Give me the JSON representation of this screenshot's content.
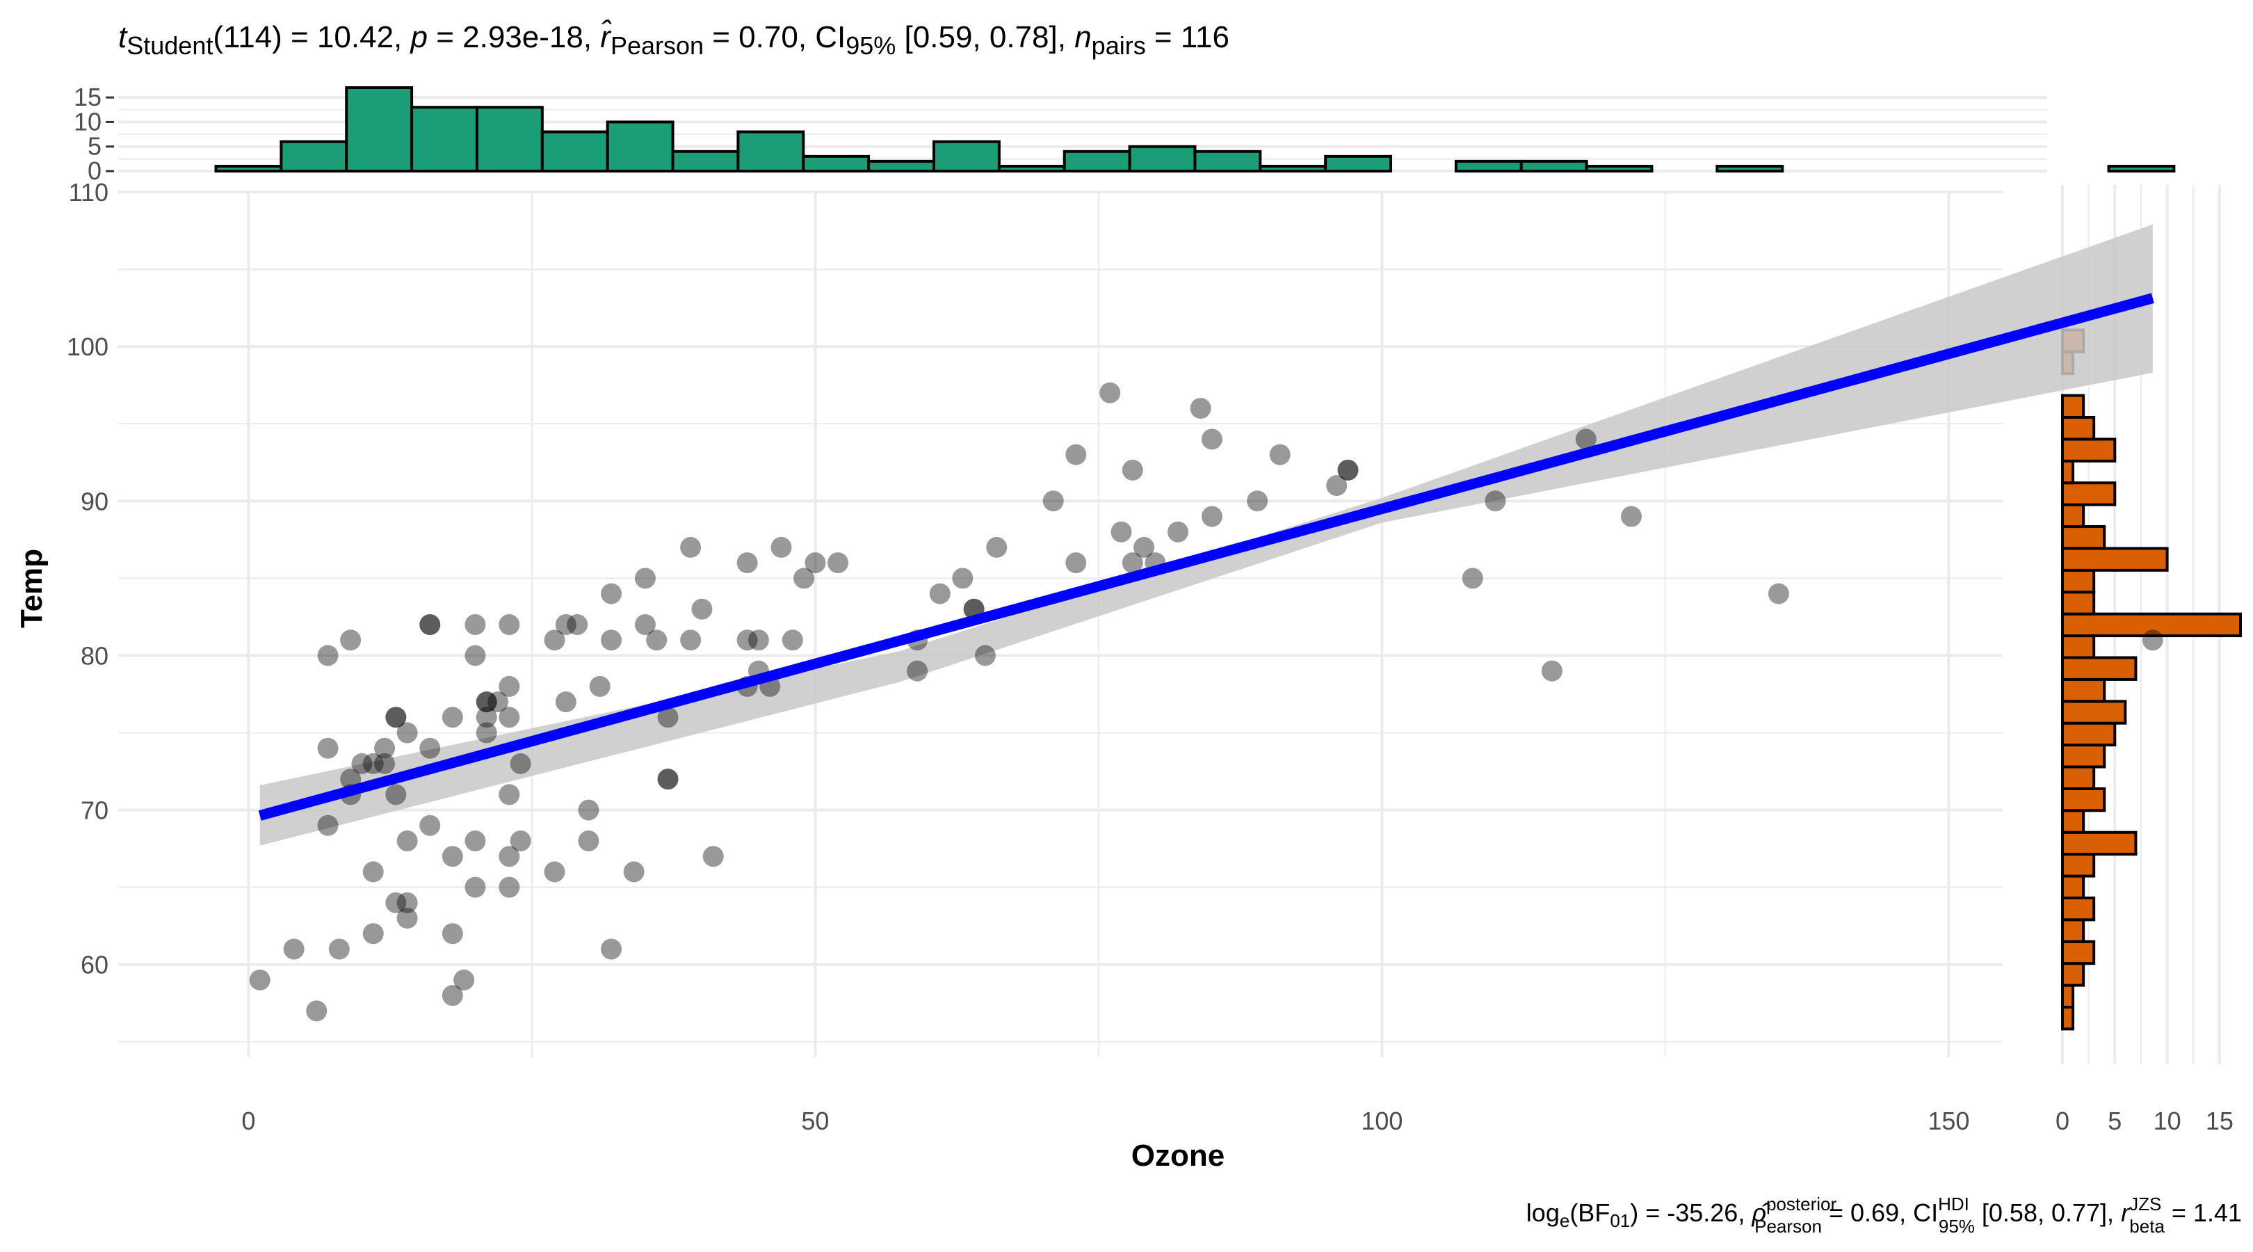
{
  "subtitle_top": {
    "t_sym": "t",
    "t_sub": "Student",
    "t_df": "(114) = 10.42, ",
    "p_sym": "p",
    "p_val": " = 2.93e-18, ",
    "r_sym": "r̂",
    "r_sub": "Pearson",
    "r_val": " = 0.70, CI",
    "ci_sub": "95%",
    "ci_val": " [0.59, 0.78], ",
    "n_sym": "n",
    "n_sub": "pairs",
    "n_val": " = 116"
  },
  "caption_bottom": {
    "log_txt": "log",
    "log_sub": "e",
    "bf_open": "(BF",
    "bf_sub": "01",
    "bf_close": ") = -35.26, ",
    "rho_sym": "ρ̂",
    "rho_sup": "posterior",
    "rho_sub": "Pearson",
    "rho_val": " = 0.69, CI",
    "ci_sup": "HDI",
    "ci_sub": "95%",
    "ci_val": " [0.58, 0.77], ",
    "rb_sym": "r",
    "rb_sup": "JZS",
    "rb_sub": "beta",
    "rb_val": " = 1.41"
  },
  "colors": {
    "top_hist_fill": "#1B9E77",
    "side_hist_fill": "#D95F02",
    "regression_line": "#0000FF",
    "ci_band": "#C8C8C8",
    "points": "#000000",
    "grid": "#EBEBEB"
  },
  "chart_data": {
    "type": "scatter",
    "xlabel": "Ozone",
    "ylabel": "Temp",
    "xlim": [
      -11.5,
      175.5
    ],
    "ylim": [
      54,
      110
    ],
    "x_ticks": [
      0,
      50,
      100,
      150
    ],
    "y_ticks": [
      60,
      70,
      80,
      90,
      100,
      110
    ],
    "grid": true,
    "points": [
      [
        1,
        59
      ],
      [
        4,
        61
      ],
      [
        6,
        57
      ],
      [
        7,
        74
      ],
      [
        7,
        69
      ],
      [
        7,
        80
      ],
      [
        8,
        61
      ],
      [
        9,
        81
      ],
      [
        9,
        72
      ],
      [
        9,
        71
      ],
      [
        10,
        73
      ],
      [
        11,
        73
      ],
      [
        11,
        66
      ],
      [
        11,
        62
      ],
      [
        12,
        73
      ],
      [
        12,
        74
      ],
      [
        13,
        76
      ],
      [
        13,
        64
      ],
      [
        13,
        71
      ],
      [
        13,
        76
      ],
      [
        14,
        63
      ],
      [
        14,
        68
      ],
      [
        14,
        64
      ],
      [
        14,
        75
      ],
      [
        16,
        74
      ],
      [
        16,
        69
      ],
      [
        16,
        82
      ],
      [
        16,
        82
      ],
      [
        18,
        67
      ],
      [
        18,
        62
      ],
      [
        18,
        76
      ],
      [
        18,
        58
      ],
      [
        19,
        59
      ],
      [
        20,
        68
      ],
      [
        20,
        65
      ],
      [
        20,
        82
      ],
      [
        20,
        80
      ],
      [
        21,
        77
      ],
      [
        21,
        77
      ],
      [
        21,
        75
      ],
      [
        21,
        76
      ],
      [
        22,
        77
      ],
      [
        23,
        65
      ],
      [
        23,
        71
      ],
      [
        23,
        67
      ],
      [
        23,
        76
      ],
      [
        23,
        78
      ],
      [
        23,
        82
      ],
      [
        24,
        68
      ],
      [
        24,
        73
      ],
      [
        27,
        66
      ],
      [
        27,
        81
      ],
      [
        28,
        82
      ],
      [
        28,
        77
      ],
      [
        29,
        82
      ],
      [
        30,
        68
      ],
      [
        30,
        70
      ],
      [
        31,
        78
      ],
      [
        32,
        61
      ],
      [
        32,
        84
      ],
      [
        32,
        81
      ],
      [
        34,
        66
      ],
      [
        35,
        85
      ],
      [
        35,
        82
      ],
      [
        36,
        81
      ],
      [
        37,
        72
      ],
      [
        37,
        72
      ],
      [
        37,
        76
      ],
      [
        39,
        87
      ],
      [
        39,
        81
      ],
      [
        40,
        83
      ],
      [
        41,
        67
      ],
      [
        44,
        86
      ],
      [
        44,
        81
      ],
      [
        44,
        78
      ],
      [
        45,
        81
      ],
      [
        45,
        79
      ],
      [
        46,
        78
      ],
      [
        47,
        87
      ],
      [
        48,
        81
      ],
      [
        49,
        85
      ],
      [
        50,
        86
      ],
      [
        52,
        86
      ],
      [
        59,
        79
      ],
      [
        59,
        81
      ],
      [
        61,
        84
      ],
      [
        63,
        85
      ],
      [
        64,
        83
      ],
      [
        64,
        83
      ],
      [
        65,
        80
      ],
      [
        66,
        87
      ],
      [
        71,
        90
      ],
      [
        73,
        93
      ],
      [
        73,
        86
      ],
      [
        76,
        97
      ],
      [
        77,
        88
      ],
      [
        78,
        92
      ],
      [
        78,
        86
      ],
      [
        79,
        87
      ],
      [
        80,
        86
      ],
      [
        82,
        88
      ],
      [
        84,
        96
      ],
      [
        85,
        94
      ],
      [
        85,
        89
      ],
      [
        89,
        90
      ],
      [
        91,
        93
      ],
      [
        96,
        91
      ],
      [
        97,
        92
      ],
      [
        97,
        92
      ],
      [
        108,
        85
      ],
      [
        110,
        90
      ],
      [
        115,
        79
      ],
      [
        118,
        94
      ],
      [
        122,
        89
      ],
      [
        135,
        84
      ],
      [
        168,
        81
      ]
    ],
    "regression": {
      "x": [
        1,
        168
      ],
      "y": [
        69.64,
        103.13
      ],
      "ci_low_at_end": [
        67.7,
        98.3
      ],
      "ci_high_at_end": [
        71.6,
        107.9
      ],
      "ci_low_mid": [
        78.3,
        88.6
      ],
      "ci_high_mid": [
        80.3,
        90.2
      ],
      "x_mid": [
        57.5,
        100
      ]
    },
    "x_histogram": {
      "bin_width": 5.7586,
      "start": -2.8793,
      "counts": [
        1,
        6,
        17,
        13,
        13,
        8,
        10,
        4,
        8,
        3,
        2,
        6,
        1,
        4,
        5,
        4,
        1,
        3,
        0,
        2,
        2,
        1,
        0,
        1,
        0,
        0,
        0,
        0,
        0,
        1
      ],
      "ylim": [
        0,
        17
      ],
      "ticks": [
        0,
        5,
        10,
        15
      ]
    },
    "y_histogram": {
      "bin_width": 1.4138,
      "start": 55.8276,
      "counts": [
        1,
        1,
        2,
        3,
        2,
        3,
        2,
        3,
        7,
        2,
        4,
        3,
        4,
        5,
        6,
        4,
        7,
        3,
        17,
        3,
        3,
        10,
        4,
        2,
        5,
        1,
        5,
        3,
        2,
        0,
        1,
        2
      ],
      "xlim": [
        0,
        17
      ],
      "ticks": [
        0,
        5,
        10,
        15
      ]
    }
  }
}
